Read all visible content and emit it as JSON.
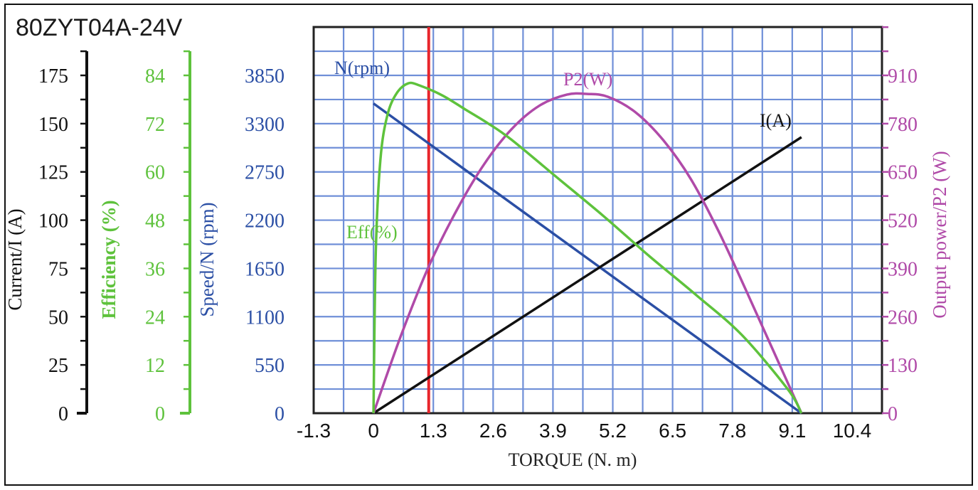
{
  "chart_data": {
    "type": "line",
    "title": "80ZYT04A-24V",
    "xlabel": "TORQUE (N. m)",
    "xlim": [
      -1.3,
      11.05
    ],
    "x_ticks": [
      "-1.3",
      "0",
      "1.3",
      "2.6",
      "3.9",
      "5.2",
      "6.5",
      "7.8",
      "9.1",
      "10.4"
    ],
    "rated_torque_marker": 1.2,
    "grid": true,
    "axes": [
      {
        "id": "current",
        "label": "Current/I (A)",
        "color": "#111111",
        "range": [
          0,
          175
        ],
        "ticks": [
          "0",
          "25",
          "50",
          "75",
          "100",
          "125",
          "150",
          "175"
        ]
      },
      {
        "id": "efficiency",
        "label": "Efficiency (%)",
        "color": "#5ec23c",
        "range": [
          0,
          84
        ],
        "ticks": [
          "0",
          "12",
          "24",
          "36",
          "48",
          "60",
          "72",
          "84"
        ]
      },
      {
        "id": "speed",
        "label": "Speed/N (rpm)",
        "color": "#2b4fa5",
        "range": [
          0,
          3850
        ],
        "ticks": [
          "0",
          "550",
          "1100",
          "1650",
          "2200",
          "2750",
          "3300",
          "3850"
        ]
      },
      {
        "id": "power",
        "label": "Output power/P2 (W)",
        "color": "#b04aa8",
        "range": [
          0,
          910
        ],
        "ticks": [
          "0",
          "130",
          "260",
          "390",
          "520",
          "650",
          "780",
          "910"
        ]
      }
    ],
    "series": [
      {
        "name": "N(rpm)",
        "axis": "speed",
        "color": "#2b4fa5",
        "x": [
          0,
          9.3
        ],
        "y": [
          3530,
          0
        ]
      },
      {
        "name": "I(A)",
        "axis": "current",
        "color": "#111111",
        "x": [
          0,
          9.3
        ],
        "y": [
          0,
          143
        ]
      },
      {
        "name": "P2(W)",
        "axis": "power",
        "color": "#b04aa8",
        "x": [
          0,
          0.6,
          1.2,
          1.8,
          2.4,
          3.0,
          3.6,
          4.2,
          4.65,
          5.1,
          5.7,
          6.3,
          6.9,
          7.5,
          8.1,
          8.7,
          9.3
        ],
        "y": [
          0,
          210,
          395,
          545,
          670,
          765,
          828,
          858,
          860,
          852,
          810,
          735,
          630,
          490,
          330,
          165,
          0
        ]
      },
      {
        "name": "Eff(%)",
        "axis": "efficiency",
        "color": "#5ec23c",
        "x": [
          0,
          0.05,
          0.15,
          0.3,
          0.5,
          0.75,
          1.0,
          1.5,
          2.0,
          2.5,
          3.0,
          4.0,
          5.0,
          6.0,
          7.0,
          8.0,
          9.0,
          9.3
        ],
        "y": [
          0,
          40,
          63,
          74,
          79.5,
          82,
          81.5,
          79,
          75.5,
          72,
          68,
          58.5,
          49,
          39,
          29.5,
          19.5,
          6,
          0
        ]
      }
    ]
  }
}
